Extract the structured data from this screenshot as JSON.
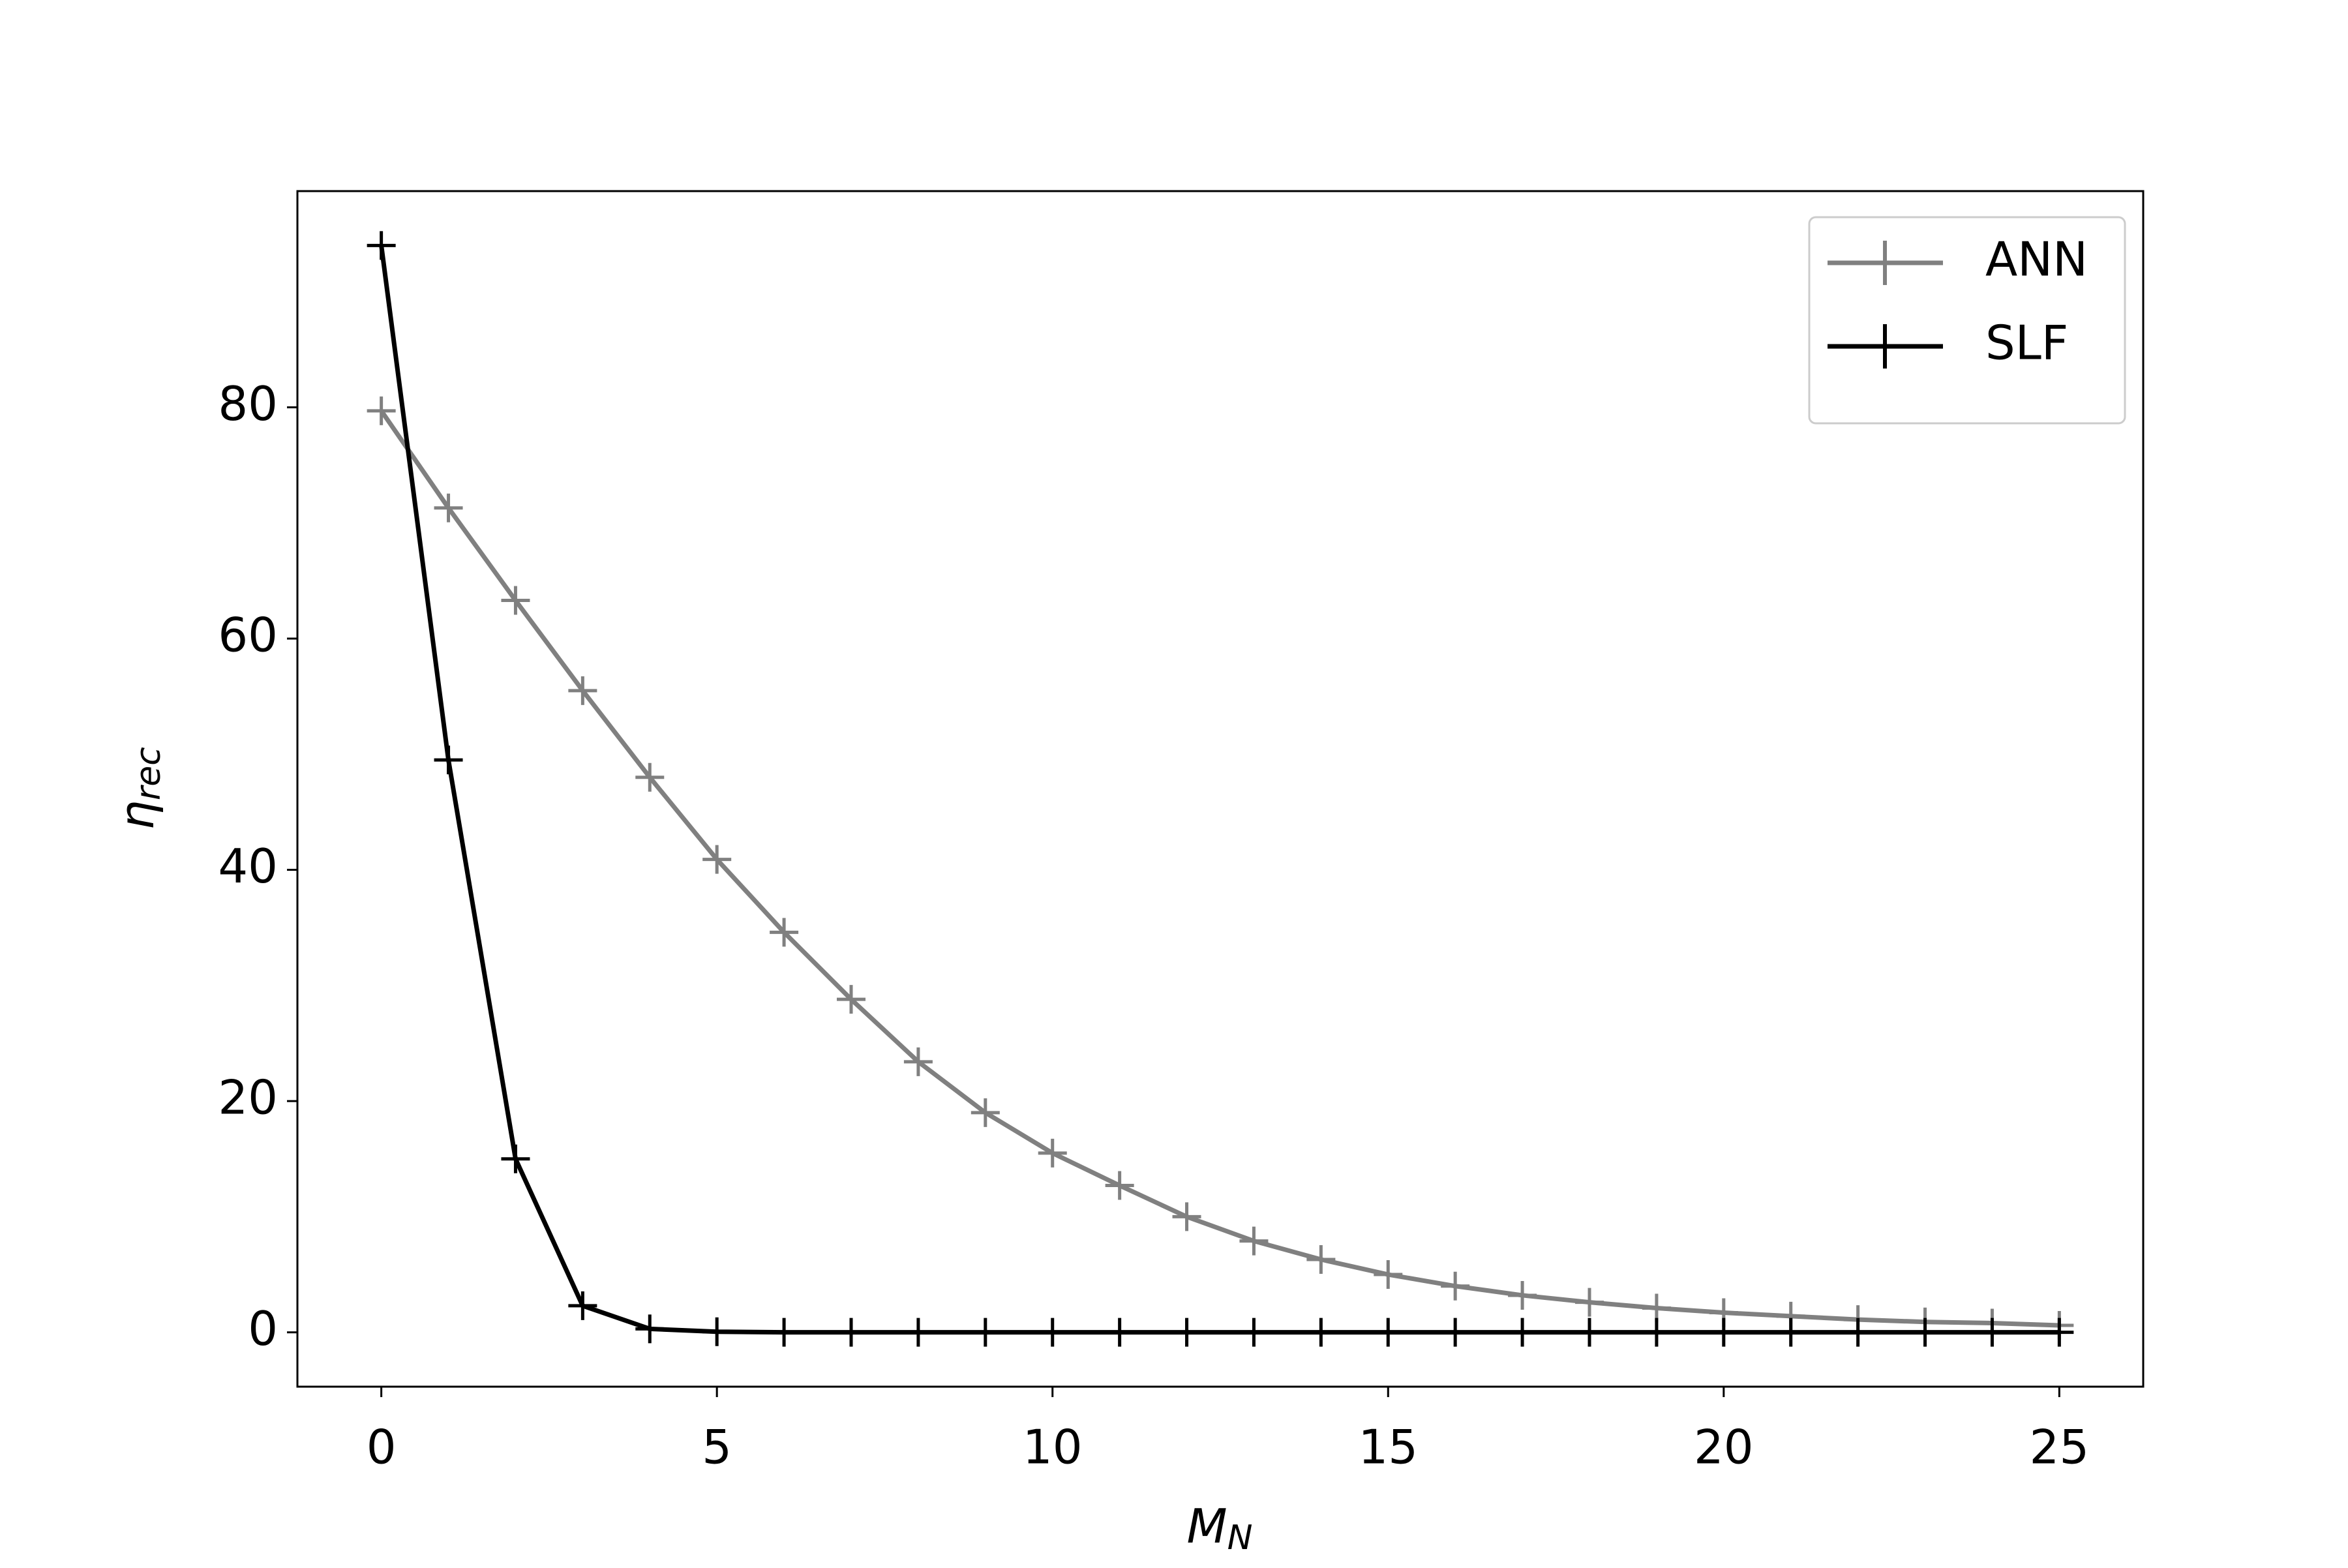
{
  "chart_data": {
    "type": "line",
    "xlabel": {
      "symbol": "M",
      "subscript": "N"
    },
    "ylabel": {
      "symbol": "η",
      "subscript": "rec"
    },
    "x": [
      0,
      1,
      2,
      3,
      4,
      5,
      6,
      7,
      8,
      9,
      10,
      11,
      12,
      13,
      14,
      15,
      16,
      17,
      18,
      19,
      20,
      21,
      22,
      23,
      24,
      25
    ],
    "series": [
      {
        "name": "ANN",
        "color": "#808080",
        "marker": "+",
        "values": [
          79.7,
          71.3,
          63.3,
          55.5,
          48.0,
          40.9,
          34.6,
          28.8,
          23.4,
          19.0,
          15.5,
          12.7,
          10.0,
          7.9,
          6.3,
          5.0,
          4.0,
          3.2,
          2.6,
          2.1,
          1.7,
          1.4,
          1.1,
          0.9,
          0.8,
          0.6
        ]
      },
      {
        "name": "SLF",
        "color": "#000000",
        "marker": "+",
        "values": [
          94.0,
          49.5,
          15.0,
          2.3,
          0.3,
          0.05,
          0,
          0,
          0,
          0,
          0,
          0,
          0,
          0,
          0,
          0,
          0,
          0,
          0,
          0,
          0,
          0,
          0,
          0,
          0,
          0
        ]
      }
    ],
    "xlim": [
      -1.25,
      26.25
    ],
    "ylim": [
      -4.7,
      98.7
    ],
    "xticks": [
      0,
      5,
      10,
      15,
      20,
      25
    ],
    "yticks": [
      0,
      20,
      40,
      60,
      80
    ],
    "grid": false,
    "legend": "upper right"
  }
}
